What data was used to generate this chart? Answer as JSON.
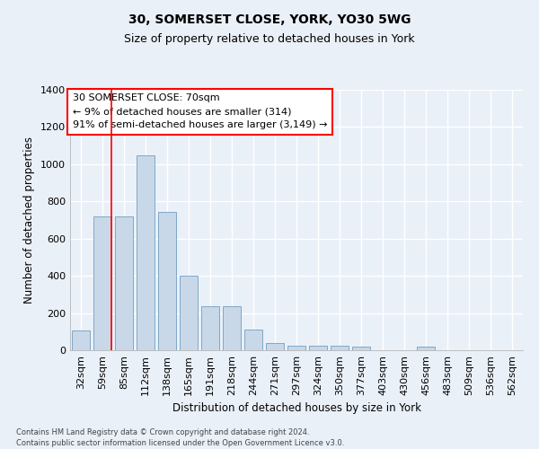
{
  "title1": "30, SOMERSET CLOSE, YORK, YO30 5WG",
  "title2": "Size of property relative to detached houses in York",
  "xlabel": "Distribution of detached houses by size in York",
  "ylabel": "Number of detached properties",
  "categories": [
    "32sqm",
    "59sqm",
    "85sqm",
    "112sqm",
    "138sqm",
    "165sqm",
    "191sqm",
    "218sqm",
    "244sqm",
    "271sqm",
    "297sqm",
    "324sqm",
    "350sqm",
    "377sqm",
    "403sqm",
    "430sqm",
    "456sqm",
    "483sqm",
    "509sqm",
    "536sqm",
    "562sqm"
  ],
  "values": [
    105,
    720,
    720,
    1050,
    745,
    400,
    235,
    235,
    110,
    40,
    25,
    25,
    25,
    20,
    0,
    0,
    20,
    0,
    0,
    0,
    0
  ],
  "bar_color": "#c8d8e8",
  "bar_edgecolor": "#7fa8c8",
  "red_line_x": 1.42,
  "annotation_box_text": "30 SOMERSET CLOSE: 70sqm\n← 9% of detached houses are smaller (314)\n91% of semi-detached houses are larger (3,149) →",
  "ylim": [
    0,
    1400
  ],
  "yticks": [
    0,
    200,
    400,
    600,
    800,
    1000,
    1200,
    1400
  ],
  "footer1": "Contains HM Land Registry data © Crown copyright and database right 2024.",
  "footer2": "Contains public sector information licensed under the Open Government Licence v3.0.",
  "bg_color": "#eaf0f8",
  "plot_bg_color": "#eaf0f8",
  "grid_color": "#ffffff",
  "title1_fontsize": 10,
  "title2_fontsize": 9,
  "xlabel_fontsize": 8.5,
  "ylabel_fontsize": 8.5,
  "tick_fontsize": 8,
  "annot_fontsize": 8,
  "footer_fontsize": 6
}
